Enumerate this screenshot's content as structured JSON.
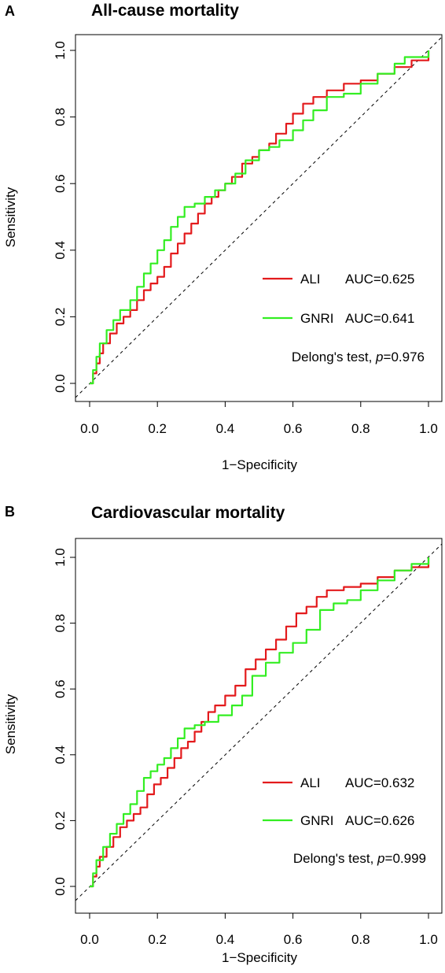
{
  "chart_data": [
    {
      "type": "line",
      "panel_label": "A",
      "title": "All-cause mortality",
      "xlabel": "1−Specificity",
      "ylabel": "Sensitivity",
      "xlim": [
        0,
        1
      ],
      "ylim": [
        0,
        1
      ],
      "xticks": [
        "0.0",
        "0.2",
        "0.4",
        "0.6",
        "0.8",
        "1.0"
      ],
      "yticks": [
        "0.0",
        "0.2",
        "0.4",
        "0.6",
        "0.8",
        "1.0"
      ],
      "reference_line": "diagonal",
      "legend_position": "bottom-right",
      "series": [
        {
          "name": "ALI",
          "auc_label": "AUC=0.625",
          "color": "#e31a1c",
          "points": [
            [
              0,
              0
            ],
            [
              0.01,
              0.03
            ],
            [
              0.02,
              0.06
            ],
            [
              0.03,
              0.09
            ],
            [
              0.04,
              0.12
            ],
            [
              0.06,
              0.15
            ],
            [
              0.08,
              0.18
            ],
            [
              0.1,
              0.2
            ],
            [
              0.12,
              0.22
            ],
            [
              0.14,
              0.25
            ],
            [
              0.16,
              0.28
            ],
            [
              0.18,
              0.3
            ],
            [
              0.2,
              0.32
            ],
            [
              0.22,
              0.35
            ],
            [
              0.24,
              0.39
            ],
            [
              0.26,
              0.42
            ],
            [
              0.28,
              0.45
            ],
            [
              0.3,
              0.48
            ],
            [
              0.32,
              0.51
            ],
            [
              0.34,
              0.54
            ],
            [
              0.36,
              0.56
            ],
            [
              0.38,
              0.58
            ],
            [
              0.4,
              0.6
            ],
            [
              0.42,
              0.62
            ],
            [
              0.45,
              0.66
            ],
            [
              0.48,
              0.68
            ],
            [
              0.5,
              0.7
            ],
            [
              0.53,
              0.72
            ],
            [
              0.55,
              0.75
            ],
            [
              0.58,
              0.78
            ],
            [
              0.6,
              0.81
            ],
            [
              0.63,
              0.84
            ],
            [
              0.66,
              0.86
            ],
            [
              0.7,
              0.88
            ],
            [
              0.75,
              0.9
            ],
            [
              0.8,
              0.91
            ],
            [
              0.85,
              0.93
            ],
            [
              0.9,
              0.95
            ],
            [
              0.95,
              0.97
            ],
            [
              1.0,
              1.0
            ]
          ]
        },
        {
          "name": "GNRI",
          "auc_label": "AUC=0.641",
          "color": "#33ee22",
          "points": [
            [
              0,
              0
            ],
            [
              0.01,
              0.04
            ],
            [
              0.02,
              0.08
            ],
            [
              0.03,
              0.12
            ],
            [
              0.05,
              0.16
            ],
            [
              0.07,
              0.19
            ],
            [
              0.09,
              0.22
            ],
            [
              0.12,
              0.25
            ],
            [
              0.14,
              0.29
            ],
            [
              0.16,
              0.33
            ],
            [
              0.18,
              0.36
            ],
            [
              0.2,
              0.4
            ],
            [
              0.22,
              0.43
            ],
            [
              0.24,
              0.47
            ],
            [
              0.26,
              0.5
            ],
            [
              0.28,
              0.53
            ],
            [
              0.31,
              0.54
            ],
            [
              0.34,
              0.56
            ],
            [
              0.37,
              0.58
            ],
            [
              0.4,
              0.6
            ],
            [
              0.43,
              0.63
            ],
            [
              0.46,
              0.67
            ],
            [
              0.5,
              0.7
            ],
            [
              0.53,
              0.71
            ],
            [
              0.56,
              0.73
            ],
            [
              0.6,
              0.76
            ],
            [
              0.63,
              0.79
            ],
            [
              0.66,
              0.82
            ],
            [
              0.7,
              0.86
            ],
            [
              0.75,
              0.87
            ],
            [
              0.8,
              0.9
            ],
            [
              0.85,
              0.93
            ],
            [
              0.9,
              0.96
            ],
            [
              0.93,
              0.98
            ],
            [
              0.97,
              0.98
            ],
            [
              1.0,
              1.0
            ]
          ]
        }
      ],
      "annotation": {
        "prefix": "Delong's test, ",
        "p_symbol": "p",
        "value": "=0.976"
      }
    },
    {
      "type": "line",
      "panel_label": "B",
      "title": "Cardiovascular mortality",
      "xlabel": "1−Specificity",
      "ylabel": "Sensitivity",
      "xlim": [
        0,
        1
      ],
      "ylim": [
        0,
        1
      ],
      "xticks": [
        "0.0",
        "0.2",
        "0.4",
        "0.6",
        "0.8",
        "1.0"
      ],
      "yticks": [
        "0.0",
        "0.2",
        "0.4",
        "0.6",
        "0.8",
        "1.0"
      ],
      "reference_line": "diagonal",
      "legend_position": "bottom-right",
      "series": [
        {
          "name": "ALI",
          "auc_label": "AUC=0.632",
          "color": "#e31a1c",
          "points": [
            [
              0,
              0
            ],
            [
              0.01,
              0.03
            ],
            [
              0.02,
              0.06
            ],
            [
              0.03,
              0.09
            ],
            [
              0.05,
              0.12
            ],
            [
              0.07,
              0.15
            ],
            [
              0.09,
              0.18
            ],
            [
              0.11,
              0.2
            ],
            [
              0.13,
              0.22
            ],
            [
              0.15,
              0.24
            ],
            [
              0.17,
              0.28
            ],
            [
              0.19,
              0.31
            ],
            [
              0.21,
              0.33
            ],
            [
              0.23,
              0.36
            ],
            [
              0.25,
              0.39
            ],
            [
              0.27,
              0.42
            ],
            [
              0.29,
              0.44
            ],
            [
              0.31,
              0.47
            ],
            [
              0.33,
              0.5
            ],
            [
              0.35,
              0.53
            ],
            [
              0.37,
              0.55
            ],
            [
              0.4,
              0.58
            ],
            [
              0.43,
              0.61
            ],
            [
              0.46,
              0.66
            ],
            [
              0.49,
              0.69
            ],
            [
              0.52,
              0.72
            ],
            [
              0.55,
              0.75
            ],
            [
              0.58,
              0.79
            ],
            [
              0.61,
              0.83
            ],
            [
              0.64,
              0.85
            ],
            [
              0.67,
              0.88
            ],
            [
              0.7,
              0.9
            ],
            [
              0.75,
              0.91
            ],
            [
              0.8,
              0.92
            ],
            [
              0.85,
              0.94
            ],
            [
              0.9,
              0.96
            ],
            [
              0.95,
              0.97
            ],
            [
              1.0,
              1.0
            ]
          ]
        },
        {
          "name": "GNRI",
          "auc_label": "AUC=0.626",
          "color": "#33ee22",
          "points": [
            [
              0,
              0
            ],
            [
              0.01,
              0.04
            ],
            [
              0.02,
              0.08
            ],
            [
              0.04,
              0.12
            ],
            [
              0.06,
              0.16
            ],
            [
              0.08,
              0.19
            ],
            [
              0.1,
              0.22
            ],
            [
              0.12,
              0.25
            ],
            [
              0.14,
              0.29
            ],
            [
              0.16,
              0.33
            ],
            [
              0.18,
              0.35
            ],
            [
              0.2,
              0.37
            ],
            [
              0.22,
              0.39
            ],
            [
              0.24,
              0.42
            ],
            [
              0.26,
              0.45
            ],
            [
              0.28,
              0.48
            ],
            [
              0.31,
              0.49
            ],
            [
              0.34,
              0.5
            ],
            [
              0.38,
              0.52
            ],
            [
              0.42,
              0.55
            ],
            [
              0.45,
              0.58
            ],
            [
              0.48,
              0.64
            ],
            [
              0.52,
              0.68
            ],
            [
              0.56,
              0.71
            ],
            [
              0.6,
              0.74
            ],
            [
              0.64,
              0.78
            ],
            [
              0.68,
              0.84
            ],
            [
              0.72,
              0.86
            ],
            [
              0.76,
              0.87
            ],
            [
              0.8,
              0.9
            ],
            [
              0.85,
              0.93
            ],
            [
              0.9,
              0.96
            ],
            [
              0.95,
              0.98
            ],
            [
              1.0,
              1.0
            ]
          ]
        }
      ],
      "annotation": {
        "prefix": "Delong's test, ",
        "p_symbol": "p",
        "value": "=0.999"
      }
    }
  ]
}
